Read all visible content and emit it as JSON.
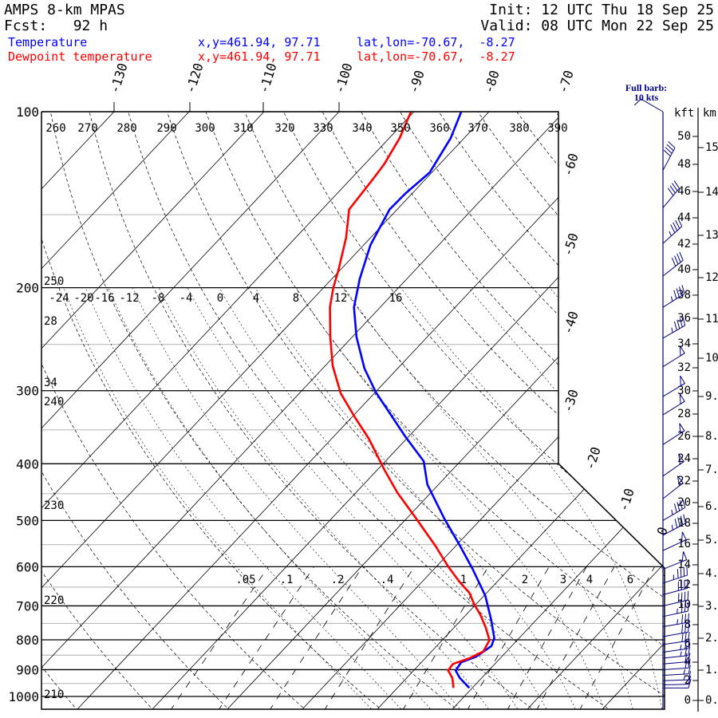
{
  "header": {
    "title": "AMPS 8-km MPAS",
    "forecast": "Fcst:   92 h",
    "init": "Init: 12 UTC Thu 18 Sep 25",
    "valid": "Valid: 08 UTC Mon 22 Sep 25"
  },
  "legend": [
    {
      "name": "Temperature",
      "xy": "x,y=461.94, 97.71",
      "latlon": "lat,lon=-70.67,  -8.27",
      "color": "#0000ff"
    },
    {
      "name": "Dewpoint temperature",
      "xy": "x,y=461.94, 97.71",
      "latlon": "lat,lon=-70.67,  -8.27",
      "color": "#ff0000"
    }
  ],
  "chart_data": {
    "type": "line",
    "title": "AMPS 8-km MPAS",
    "ylabel": "Pressure (hPa)",
    "ylim": [
      1050,
      100
    ],
    "pressure_labels": [
      "100",
      "200",
      "300",
      "400",
      "500",
      "600",
      "700",
      "800",
      "900",
      "1000"
    ],
    "isotherm_labels_top": [
      "-130",
      "-120",
      "-110",
      "-100",
      "-90",
      "-80",
      "-70"
    ],
    "isotherm_labels_right": [
      "-60",
      "-50",
      "-40",
      "-30",
      "-20",
      "-10",
      "0"
    ],
    "dry_adiabat_labels": [
      "260",
      "270",
      "280",
      "290",
      "300",
      "310",
      "320",
      "330",
      "340",
      "350",
      "360",
      "370",
      "380",
      "390"
    ],
    "left_labels": [
      "250",
      "28",
      "34",
      "240",
      "230",
      "220",
      "210"
    ],
    "moist_adiabat_labels": [
      "-24",
      "-20",
      "-16",
      "-12",
      "-8",
      "-4",
      "0",
      "4",
      "8",
      "12",
      "16"
    ],
    "mixing_ratio": {
      "values": [
        0.05,
        0.1,
        0.2,
        0.4,
        1,
        2,
        3,
        4,
        6
      ],
      "labels": [
        ".05",
        ".1",
        ".2",
        ".4",
        "1",
        "2",
        "3",
        "4",
        "6"
      ]
    },
    "series": [
      {
        "name": "Temperature",
        "color": "#0000ff",
        "points": [
          [
            100,
            -83.7
          ],
          [
            111,
            -81.8
          ],
          [
            127,
            -80.3
          ],
          [
            138,
            -80.9
          ],
          [
            147,
            -81.0
          ],
          [
            169,
            -79.1
          ],
          [
            193,
            -76.3
          ],
          [
            216,
            -73.5
          ],
          [
            243,
            -69.4
          ],
          [
            275,
            -64.4
          ],
          [
            302,
            -59.9
          ],
          [
            359,
            -50.5
          ],
          [
            396,
            -44.9
          ],
          [
            434,
            -41.5
          ],
          [
            496,
            -35.0
          ],
          [
            551,
            -29.6
          ],
          [
            605,
            -24.9
          ],
          [
            673,
            -19.8
          ],
          [
            740,
            -16.0
          ],
          [
            795,
            -13.3
          ],
          [
            820,
            -12.7
          ],
          [
            855,
            -13.4
          ],
          [
            874,
            -14.7
          ],
          [
            903,
            -14.4
          ],
          [
            930,
            -12.9
          ],
          [
            967,
            -10.4
          ]
        ]
      },
      {
        "name": "Dewpoint temperature",
        "color": "#ff0000",
        "points": [
          [
            100,
            -90.4
          ],
          [
            111,
            -88.6
          ],
          [
            123,
            -87.4
          ],
          [
            129,
            -87.1
          ],
          [
            147,
            -86.4
          ],
          [
            164,
            -83.3
          ],
          [
            186,
            -80.3
          ],
          [
            200,
            -78.7
          ],
          [
            216,
            -76.7
          ],
          [
            243,
            -72.9
          ],
          [
            272,
            -69.0
          ],
          [
            303,
            -64.5
          ],
          [
            333,
            -59.6
          ],
          [
            362,
            -55.1
          ],
          [
            411,
            -48.9
          ],
          [
            448,
            -44.5
          ],
          [
            492,
            -39.2
          ],
          [
            554,
            -32.6
          ],
          [
            600,
            -28.4
          ],
          [
            638,
            -24.9
          ],
          [
            665,
            -22.3
          ],
          [
            696,
            -20.2
          ],
          [
            725,
            -18.1
          ],
          [
            762,
            -15.8
          ],
          [
            801,
            -13.7
          ],
          [
            838,
            -13.1
          ],
          [
            860,
            -14.1
          ],
          [
            880,
            -15.6
          ],
          [
            903,
            -15.4
          ],
          [
            930,
            -13.9
          ],
          [
            967,
            -12.5
          ]
        ]
      }
    ],
    "height_axis": {
      "kft_title": "kft",
      "km_title": "km",
      "kft_labels": [
        "50",
        "48",
        "46",
        "44",
        "42",
        "40",
        "38",
        "36",
        "34",
        "32",
        "30",
        "28",
        "26",
        "24",
        "22",
        "20",
        "18",
        "16",
        "14",
        "12",
        "10",
        "8",
        "6",
        "4",
        "2",
        "0"
      ],
      "km_labels": [
        "15.",
        "14.",
        "13.",
        "12.",
        "11.",
        "10.",
        "9.",
        "8.",
        "7.",
        "6.",
        "5.",
        "4.",
        "3.",
        "2.",
        "1.",
        "0."
      ]
    },
    "wind_barbs": {
      "note_line1": "Full barb:",
      "note_line2": "10 kts",
      "color": "#000080",
      "levels": [
        {
          "p": 100,
          "dir": 300,
          "spd": 10
        },
        {
          "p": 126,
          "dir": 28,
          "spd": 40
        },
        {
          "p": 146,
          "dir": 40,
          "spd": 40
        },
        {
          "p": 168,
          "dir": 48,
          "spd": 45
        },
        {
          "p": 191,
          "dir": 52,
          "spd": 40
        },
        {
          "p": 216,
          "dir": 58,
          "spd": 45
        },
        {
          "p": 244,
          "dir": 60,
          "spd": 45
        },
        {
          "p": 273,
          "dir": 58,
          "spd": 50
        },
        {
          "p": 307,
          "dir": 59,
          "spd": 50
        },
        {
          "p": 330,
          "dir": 58,
          "spd": 50
        },
        {
          "p": 371,
          "dir": 57,
          "spd": 50
        },
        {
          "p": 420,
          "dir": 55,
          "spd": 50
        },
        {
          "p": 459,
          "dir": 52,
          "spd": 50
        },
        {
          "p": 500,
          "dir": 60,
          "spd": 45
        },
        {
          "p": 530,
          "dir": 62,
          "spd": 45
        },
        {
          "p": 563,
          "dir": 65,
          "spd": 50
        },
        {
          "p": 606,
          "dir": 68,
          "spd": 50
        },
        {
          "p": 640,
          "dir": 72,
          "spd": 45
        },
        {
          "p": 670,
          "dir": 75,
          "spd": 40
        },
        {
          "p": 700,
          "dir": 77,
          "spd": 40
        },
        {
          "p": 730,
          "dir": 78,
          "spd": 35
        },
        {
          "p": 760,
          "dir": 80,
          "spd": 35
        },
        {
          "p": 790,
          "dir": 80,
          "spd": 30
        },
        {
          "p": 815,
          "dir": 82,
          "spd": 30
        },
        {
          "p": 840,
          "dir": 82,
          "spd": 25
        },
        {
          "p": 860,
          "dir": 84,
          "spd": 25
        },
        {
          "p": 880,
          "dir": 85,
          "spd": 20
        },
        {
          "p": 900,
          "dir": 86,
          "spd": 20
        },
        {
          "p": 920,
          "dir": 87,
          "spd": 15
        },
        {
          "p": 940,
          "dir": 88,
          "spd": 15
        },
        {
          "p": 955,
          "dir": 89,
          "spd": 10
        },
        {
          "p": 967,
          "dir": 90,
          "spd": 10
        }
      ]
    }
  }
}
